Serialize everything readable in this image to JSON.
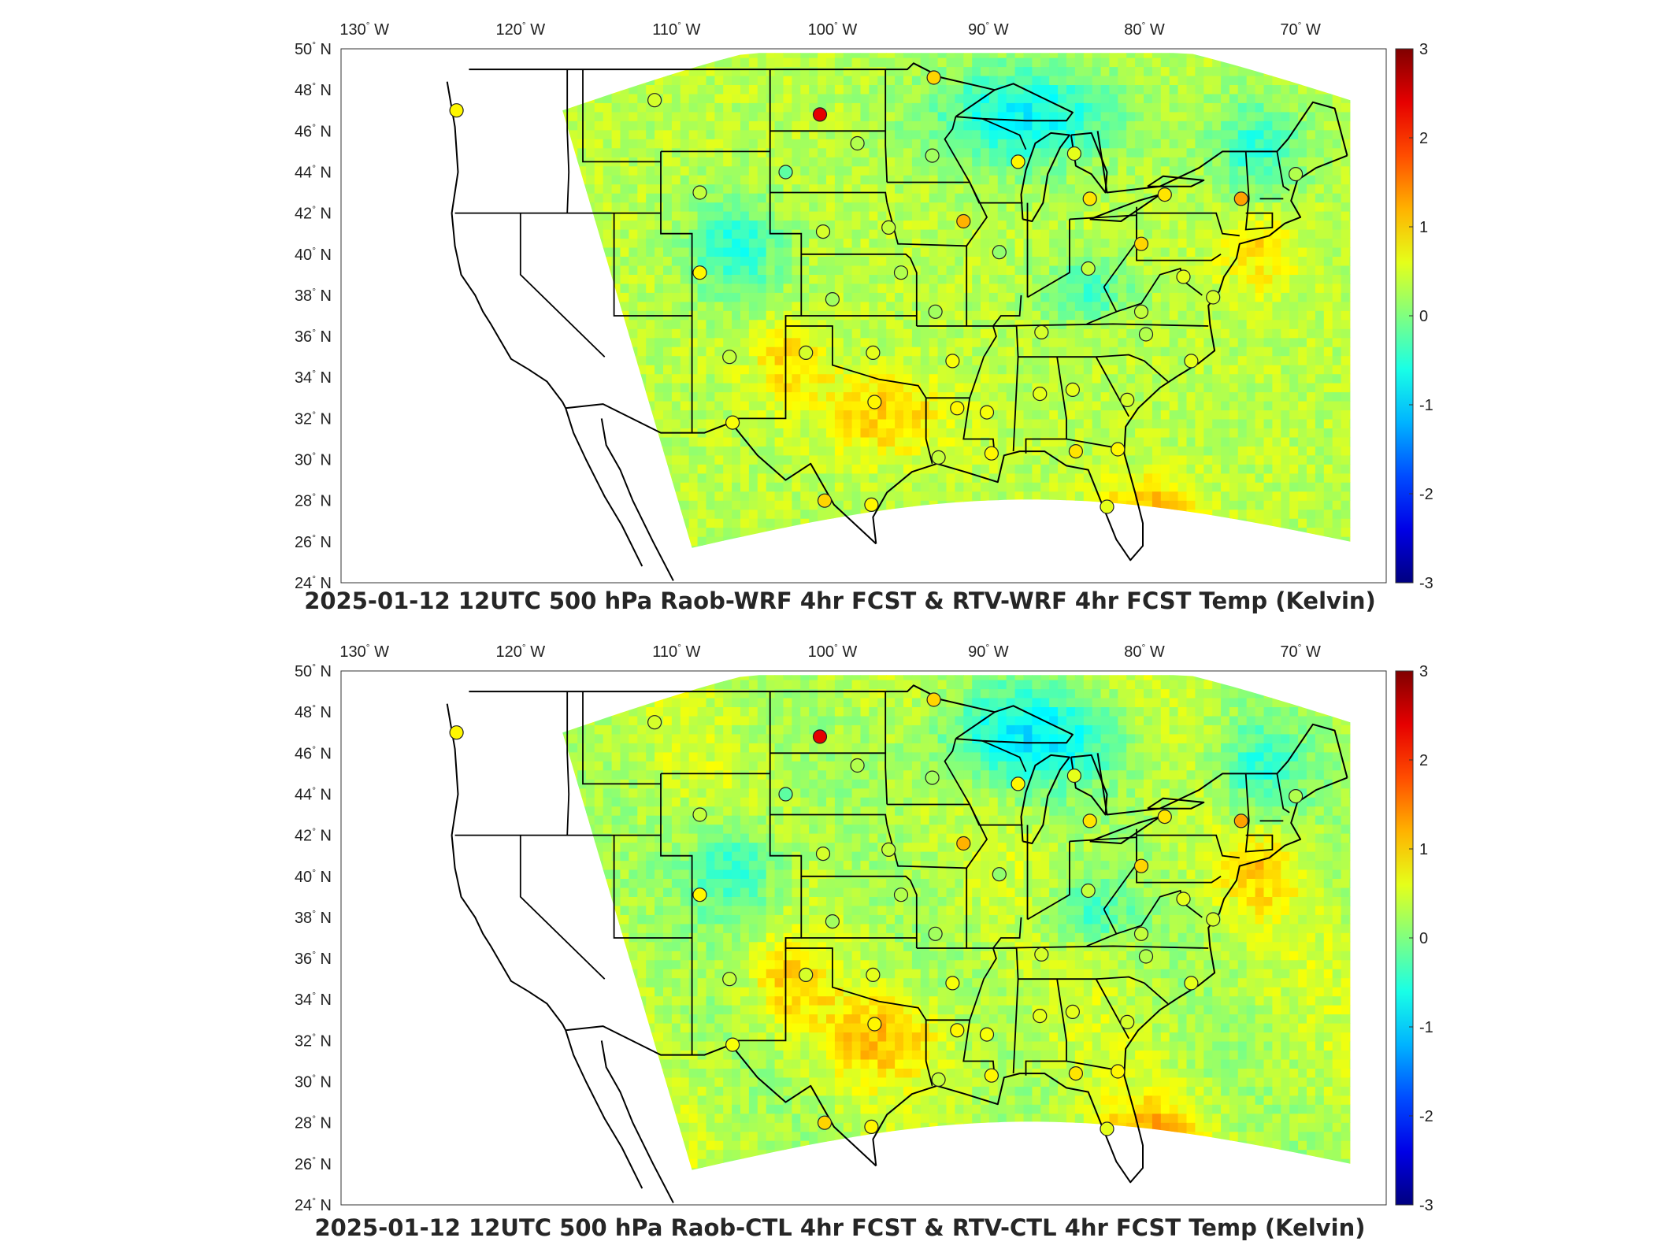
{
  "panels": [
    {
      "id": "top",
      "title": "2025-01-12 12UTC 500 hPa Raob-WRF 4hr FCST & RTV-WRF 4hr FCST Temp (Kelvin)"
    },
    {
      "id": "bottom",
      "title": "2025-01-12 12UTC 500 hPa Raob-CTL 4hr FCST & RTV-CTL 4hr FCST Temp (Kelvin)"
    }
  ],
  "lon_ticks": [
    {
      "value": "130",
      "dir": "W"
    },
    {
      "value": "120",
      "dir": "W"
    },
    {
      "value": "110",
      "dir": "W"
    },
    {
      "value": "100",
      "dir": "W"
    },
    {
      "value": "90",
      "dir": "W"
    },
    {
      "value": "80",
      "dir": "W"
    },
    {
      "value": "70",
      "dir": "W"
    }
  ],
  "lat_ticks": [
    {
      "value": "50",
      "dir": "N"
    },
    {
      "value": "48",
      "dir": "N"
    },
    {
      "value": "46",
      "dir": "N"
    },
    {
      "value": "44",
      "dir": "N"
    },
    {
      "value": "42",
      "dir": "N"
    },
    {
      "value": "40",
      "dir": "N"
    },
    {
      "value": "38",
      "dir": "N"
    },
    {
      "value": "36",
      "dir": "N"
    },
    {
      "value": "34",
      "dir": "N"
    },
    {
      "value": "32",
      "dir": "N"
    },
    {
      "value": "30",
      "dir": "N"
    },
    {
      "value": "28",
      "dir": "N"
    },
    {
      "value": "26",
      "dir": "N"
    },
    {
      "value": "24",
      "dir": "N"
    }
  ],
  "degree_symbol": "°",
  "colorbar": {
    "ticks": [
      "3",
      "2",
      "1",
      "0",
      "-1",
      "-2",
      "-3"
    ],
    "range": [
      -3,
      3
    ],
    "colormap": "jet"
  },
  "colors": {
    "ocean_background": "#ffffff",
    "field_mid": "#b8f050",
    "field_warm": "#f0e030",
    "field_cool": "#40d8e0",
    "field_cold": "#2090e8",
    "field_hot": "#f08020",
    "boundary": "#000000"
  },
  "raob_sites": [
    {
      "lon": -124.1,
      "lat": 47.0,
      "value": 0.8
    },
    {
      "lon": -111.4,
      "lat": 47.5,
      "value": 0.5
    },
    {
      "lon": -100.8,
      "lat": 46.8,
      "value": 2.4
    },
    {
      "lon": -98.4,
      "lat": 45.4,
      "value": 0.3
    },
    {
      "lon": -103.0,
      "lat": 44.0,
      "value": -0.2
    },
    {
      "lon": -108.5,
      "lat": 43.0,
      "value": 0.4
    },
    {
      "lon": -93.5,
      "lat": 48.6,
      "value": 1.0
    },
    {
      "lon": -93.6,
      "lat": 44.8,
      "value": 0.2
    },
    {
      "lon": -88.1,
      "lat": 44.5,
      "value": 0.8
    },
    {
      "lon": -84.5,
      "lat": 44.9,
      "value": 0.6
    },
    {
      "lon": -83.5,
      "lat": 42.7,
      "value": 0.9
    },
    {
      "lon": -78.7,
      "lat": 42.9,
      "value": 0.9
    },
    {
      "lon": -73.8,
      "lat": 42.7,
      "value": 1.3
    },
    {
      "lon": -70.3,
      "lat": 43.9,
      "value": 0.3
    },
    {
      "lon": -91.6,
      "lat": 41.6,
      "value": 1.2
    },
    {
      "lon": -100.6,
      "lat": 41.1,
      "value": 0.5
    },
    {
      "lon": -96.4,
      "lat": 41.3,
      "value": 0.4
    },
    {
      "lon": -89.3,
      "lat": 40.1,
      "value": 0.1
    },
    {
      "lon": -80.2,
      "lat": 40.5,
      "value": 1.0
    },
    {
      "lon": -108.5,
      "lat": 39.1,
      "value": 0.8
    },
    {
      "lon": -95.6,
      "lat": 39.1,
      "value": 0.3
    },
    {
      "lon": -100.0,
      "lat": 37.8,
      "value": 0.2
    },
    {
      "lon": -83.6,
      "lat": 39.3,
      "value": 0.4
    },
    {
      "lon": -77.5,
      "lat": 38.9,
      "value": 0.6
    },
    {
      "lon": -75.6,
      "lat": 37.9,
      "value": 0.5
    },
    {
      "lon": -93.4,
      "lat": 37.2,
      "value": 0.2
    },
    {
      "lon": -86.6,
      "lat": 36.2,
      "value": 0.5
    },
    {
      "lon": -80.2,
      "lat": 37.2,
      "value": 0.4
    },
    {
      "lon": -79.9,
      "lat": 36.1,
      "value": 0.3
    },
    {
      "lon": -106.6,
      "lat": 35.0,
      "value": 0.4
    },
    {
      "lon": -101.7,
      "lat": 35.2,
      "value": 0.5
    },
    {
      "lon": -97.4,
      "lat": 35.2,
      "value": 0.6
    },
    {
      "lon": -92.3,
      "lat": 34.8,
      "value": 0.7
    },
    {
      "lon": -77.0,
      "lat": 34.8,
      "value": 0.6
    },
    {
      "lon": -106.4,
      "lat": 31.8,
      "value": 0.7
    },
    {
      "lon": -97.3,
      "lat": 32.8,
      "value": 0.8
    },
    {
      "lon": -92.0,
      "lat": 32.5,
      "value": 0.8
    },
    {
      "lon": -90.1,
      "lat": 32.3,
      "value": 0.7
    },
    {
      "lon": -86.7,
      "lat": 33.2,
      "value": 0.6
    },
    {
      "lon": -84.6,
      "lat": 33.4,
      "value": 0.6
    },
    {
      "lon": -81.1,
      "lat": 32.9,
      "value": 0.5
    },
    {
      "lon": -93.2,
      "lat": 30.1,
      "value": 0.4
    },
    {
      "lon": -89.8,
      "lat": 30.3,
      "value": 0.8
    },
    {
      "lon": -84.4,
      "lat": 30.4,
      "value": 0.9
    },
    {
      "lon": -81.7,
      "lat": 30.5,
      "value": 0.8
    },
    {
      "lon": -100.5,
      "lat": 28.0,
      "value": 1.0
    },
    {
      "lon": -97.5,
      "lat": 27.8,
      "value": 0.8
    },
    {
      "lon": -82.4,
      "lat": 27.7,
      "value": 0.6
    }
  ]
}
